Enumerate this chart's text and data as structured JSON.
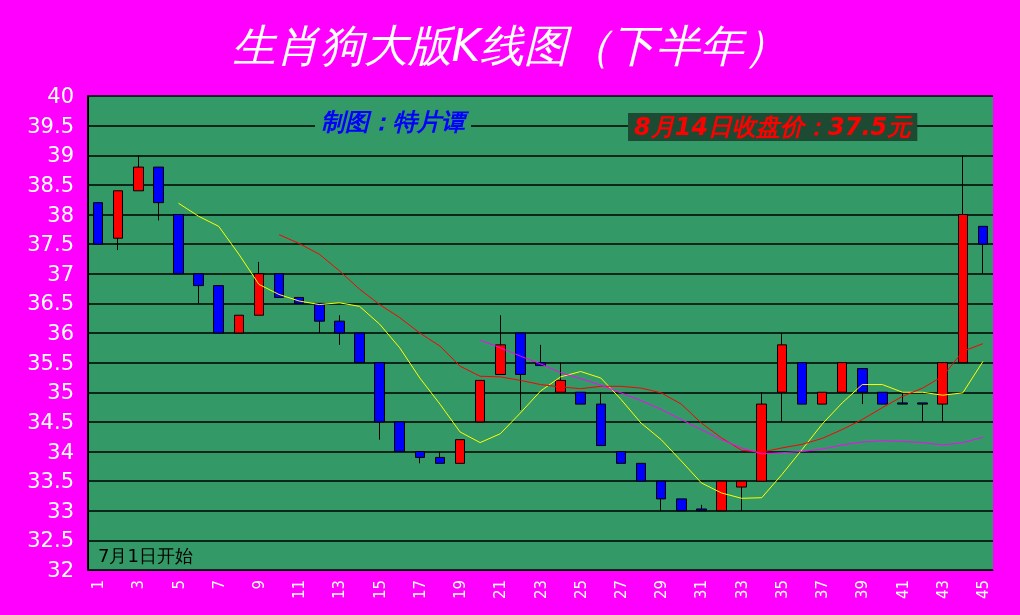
{
  "chart_data": {
    "type": "candlestick",
    "title": "生肖狗大版K线图（下半年）",
    "annotations": [
      "制图：特片谭",
      "8月14日收盘价：37.5元",
      "7月1日开始"
    ],
    "categories": [
      "1",
      null,
      "3",
      null,
      "5",
      null,
      "7",
      null,
      "9",
      null,
      "11",
      null,
      "13",
      null,
      "15",
      null,
      "17",
      null,
      "19",
      null,
      "21",
      null,
      "23",
      null,
      "25",
      null,
      "27",
      null,
      "29",
      null,
      "31",
      null,
      "33",
      null,
      "35",
      null,
      "37",
      null,
      "39",
      null,
      "41",
      null,
      "43",
      null,
      "45"
    ],
    "ylim": [
      32,
      40
    ],
    "yticks": [
      32,
      32.5,
      33,
      33.5,
      34,
      34.5,
      35,
      35.5,
      36,
      36.5,
      37,
      37.5,
      38,
      38.5,
      39,
      39.5,
      40
    ],
    "grid": "y",
    "marker": "none",
    "series": [
      {
        "type": "candlestick",
        "ohlc": [
          [
            38.2,
            38.2,
            37.5,
            37.5
          ],
          [
            37.6,
            38.4,
            37.4,
            38.4
          ],
          [
            38.4,
            39,
            38.4,
            38.8
          ],
          [
            38.8,
            38.8,
            37.9,
            38.2
          ],
          [
            38,
            38,
            37,
            37
          ],
          [
            37,
            37,
            36.5,
            36.8
          ],
          [
            36.8,
            36.8,
            36,
            36
          ],
          [
            36,
            36.3,
            36,
            36.3
          ],
          [
            36.3,
            37.2,
            36.3,
            37
          ],
          [
            37,
            37,
            36.6,
            36.6
          ],
          [
            36.6,
            36.6,
            36.5,
            36.5
          ],
          [
            36.5,
            36.5,
            36,
            36.2
          ],
          [
            36.2,
            36.3,
            35.8,
            36
          ],
          [
            36,
            36,
            35.5,
            35.5
          ],
          [
            35.5,
            35.5,
            34.2,
            34.5
          ],
          [
            34.5,
            34.5,
            34,
            34
          ],
          [
            34,
            34,
            33.8,
            33.9
          ],
          [
            33.9,
            34,
            33.8,
            33.8
          ],
          [
            33.8,
            34.2,
            33.8,
            34.2
          ],
          [
            34.5,
            35.2,
            34.5,
            35.2
          ],
          [
            35.3,
            36.3,
            35.3,
            35.8
          ],
          [
            36,
            36,
            34.7,
            35.3
          ],
          [
            35.5,
            35.8,
            35.45,
            35.45
          ],
          [
            35,
            35.5,
            35,
            35.2
          ],
          [
            35,
            35,
            34.8,
            34.8
          ],
          [
            34.8,
            35,
            34.1,
            34.1
          ],
          [
            34,
            34,
            33.8,
            33.8
          ],
          [
            33.8,
            33.8,
            33.5,
            33.5
          ],
          [
            33.5,
            33.5,
            33,
            33.2
          ],
          [
            33.2,
            33.2,
            33,
            33
          ],
          [
            33.03,
            33.1,
            33,
            33
          ],
          [
            33,
            33.5,
            33,
            33.5
          ],
          [
            33.4,
            33.5,
            33,
            33.5
          ],
          [
            33.5,
            35,
            33.5,
            34.8
          ],
          [
            35,
            36,
            34.5,
            35.8
          ],
          [
            35.5,
            35.5,
            34.8,
            34.8
          ],
          [
            34.8,
            35,
            34.8,
            35
          ],
          [
            35,
            35.5,
            35,
            35.5
          ],
          [
            35.4,
            35.4,
            34.8,
            35
          ],
          [
            35,
            35,
            34.8,
            34.8
          ],
          [
            34.82,
            35,
            34.8,
            34.8
          ],
          [
            34.82,
            34.82,
            34.5,
            34.8
          ],
          [
            34.8,
            35.5,
            34.5,
            35.5
          ],
          [
            35.5,
            39,
            35.5,
            38
          ],
          [
            37.8,
            37.8,
            37,
            37.5
          ]
        ],
        "colors": [
          "#0000ff",
          "#ff0000",
          "#ff0000",
          "#0000ff",
          "#0000ff",
          "#0000ff",
          "#0000ff",
          "#ff0000",
          "#ff0000",
          "#0000ff",
          "#0000ff",
          "#0000ff",
          "#0000ff",
          "#0000ff",
          "#0000ff",
          "#0000ff",
          "#0000ff",
          "#0000ff",
          "#ff0000",
          "#ff0000",
          "#ff0000",
          "#0000ff",
          "#0000ff",
          "#ff0000",
          "#0000ff",
          "#0000ff",
          "#0000ff",
          "#0000ff",
          "#0000ff",
          "#0000ff",
          "#0000ff",
          "#ff0000",
          "#ff0000",
          "#ff0000",
          "#ff0000",
          "#0000ff",
          "#ff0000",
          "#ff0000",
          "#0000ff",
          "#0000ff",
          "#0000ff",
          "#0000ff",
          "#ff0000",
          "#ff0000",
          "#0000ff"
        ]
      },
      {
        "type": "line",
        "color": "#ffff00",
        "values": [
          null,
          null,
          null,
          null,
          38.19,
          37.97,
          37.8,
          37.33,
          36.82,
          36.65,
          36.54,
          36.48,
          36.51,
          36.45,
          36.15,
          35.75,
          35.24,
          34.8,
          34.33,
          34.15,
          34.3,
          34.65,
          35.02,
          35.26,
          35.35,
          35.24,
          34.88,
          34.48,
          34.2,
          33.84,
          33.47,
          33.3,
          33.21,
          33.22,
          33.61,
          34.03,
          34.46,
          34.82,
          35.13,
          35.13,
          35,
          35,
          34.95,
          34.99,
          35.52
        ]
      },
      {
        "type": "line",
        "color": "#ff0000",
        "values": [
          null,
          null,
          null,
          null,
          null,
          null,
          null,
          null,
          null,
          37.66,
          37.51,
          37.33,
          37.05,
          36.74,
          36.48,
          36.26,
          36,
          35.78,
          35.44,
          35.27,
          35.26,
          35.2,
          35.13,
          35.09,
          35.06,
          35.1,
          35.1,
          35.07,
          34.99,
          34.8,
          34.48,
          34.23,
          34.02,
          33.99,
          34.06,
          34.12,
          34.22,
          34.37,
          34.54,
          34.74,
          34.93,
          35.07,
          35.27,
          35.69,
          35.82
        ]
      },
      {
        "type": "line",
        "color": "#ff00ff",
        "values": [
          null,
          null,
          null,
          null,
          null,
          null,
          null,
          null,
          null,
          null,
          null,
          null,
          null,
          null,
          null,
          null,
          null,
          null,
          null,
          35.88,
          35.75,
          35.61,
          35.48,
          35.33,
          35.23,
          35.12,
          34.99,
          34.86,
          34.71,
          34.54,
          34.37,
          34.2,
          34.06,
          33.96,
          33.98,
          34,
          34.04,
          34.11,
          34.16,
          34.18,
          34.17,
          34.15,
          34.11,
          34.15,
          34.24
        ]
      }
    ]
  }
}
